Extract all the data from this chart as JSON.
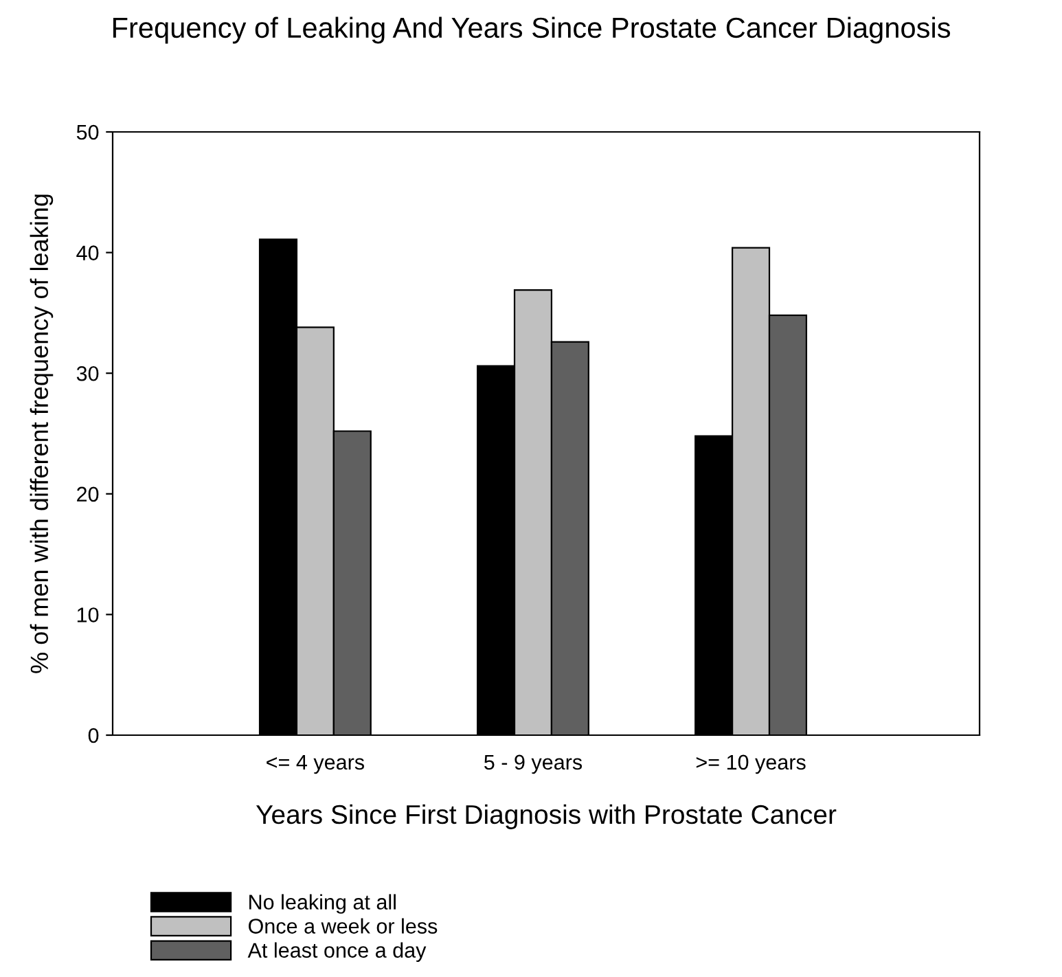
{
  "chart_data": {
    "type": "bar",
    "title": "Frequency of Leaking And Years Since Prostate Cancer Diagnosis",
    "xlabel": "Years Since First Diagnosis with Prostate Cancer",
    "ylabel": "% of men with different frequency of leaking",
    "categories": [
      "<= 4 years",
      "5 - 9 years",
      ">= 10 years"
    ],
    "series": [
      {
        "name": "No leaking at all",
        "color": "#000000",
        "values": [
          41.1,
          30.6,
          24.8
        ]
      },
      {
        "name": "Once a week or less",
        "color": "#c0c0c0",
        "values": [
          33.8,
          36.9,
          40.4
        ]
      },
      {
        "name": "At least once a day",
        "color": "#606060",
        "values": [
          25.2,
          32.6,
          34.8
        ]
      }
    ],
    "ylim": [
      0,
      50
    ],
    "yticks": [
      0,
      10,
      20,
      30,
      40,
      50
    ],
    "grid": false,
    "legend": "bottom"
  }
}
